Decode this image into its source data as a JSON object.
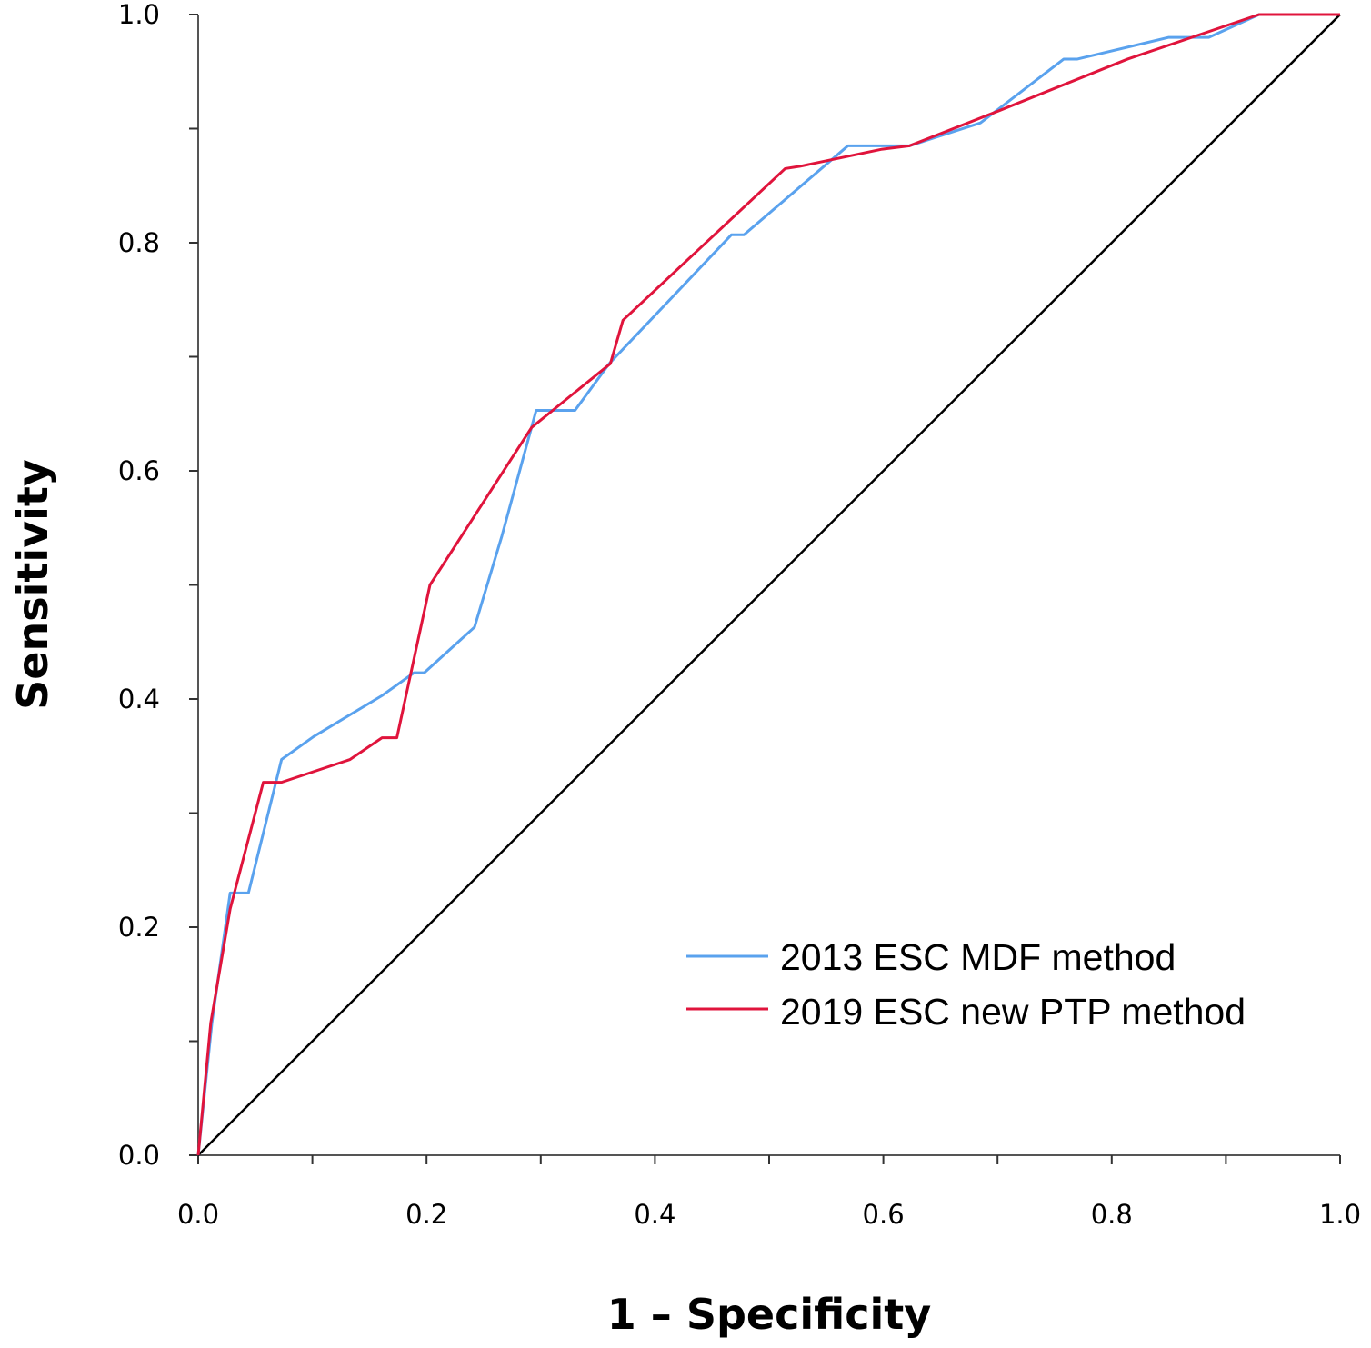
{
  "chart_data": {
    "type": "line",
    "title": "",
    "xlabel": "1 – Specificity",
    "ylabel": "Sensitivity",
    "xlim": [
      0,
      1
    ],
    "ylim": [
      0,
      1
    ],
    "xticks": [
      "0.0",
      "0.2",
      "0.4",
      "0.6",
      "0.8",
      "1.0"
    ],
    "yticks": [
      "0.0",
      "0.2",
      "0.4",
      "0.6",
      "0.8",
      "1.0"
    ],
    "grid": false,
    "legend_position": "bottom-right",
    "reference_line": {
      "x": [
        0,
        1
      ],
      "y": [
        0,
        1
      ],
      "color": "#000000"
    },
    "series": [
      {
        "name": "2013 ESC MDF method",
        "color": "#5aa2ee",
        "x": [
          0,
          0.012,
          0.028,
          0.044,
          0.073,
          0.101,
          0.161,
          0.189,
          0.198,
          0.242,
          0.266,
          0.296,
          0.33,
          0.36,
          0.467,
          0.478,
          0.569,
          0.623,
          0.685,
          0.758,
          0.77,
          0.85,
          0.885,
          0.929,
          1.0
        ],
        "y": [
          0,
          0.116,
          0.23,
          0.23,
          0.347,
          0.367,
          0.403,
          0.423,
          0.423,
          0.463,
          0.543,
          0.653,
          0.653,
          0.694,
          0.807,
          0.807,
          0.885,
          0.885,
          0.905,
          0.961,
          0.961,
          0.98,
          0.98,
          1.0,
          1.0
        ]
      },
      {
        "name": "2019 ESC new PTP method",
        "color": "#e0143c",
        "x": [
          0,
          0.011,
          0.028,
          0.057,
          0.073,
          0.133,
          0.161,
          0.174,
          0.203,
          0.292,
          0.361,
          0.372,
          0.514,
          0.527,
          0.599,
          0.623,
          0.702,
          0.814,
          0.929,
          1.0
        ],
        "y": [
          0,
          0.116,
          0.216,
          0.327,
          0.327,
          0.347,
          0.366,
          0.366,
          0.5,
          0.638,
          0.694,
          0.732,
          0.865,
          0.867,
          0.882,
          0.885,
          0.916,
          0.961,
          1.0,
          1.0
        ]
      }
    ]
  }
}
